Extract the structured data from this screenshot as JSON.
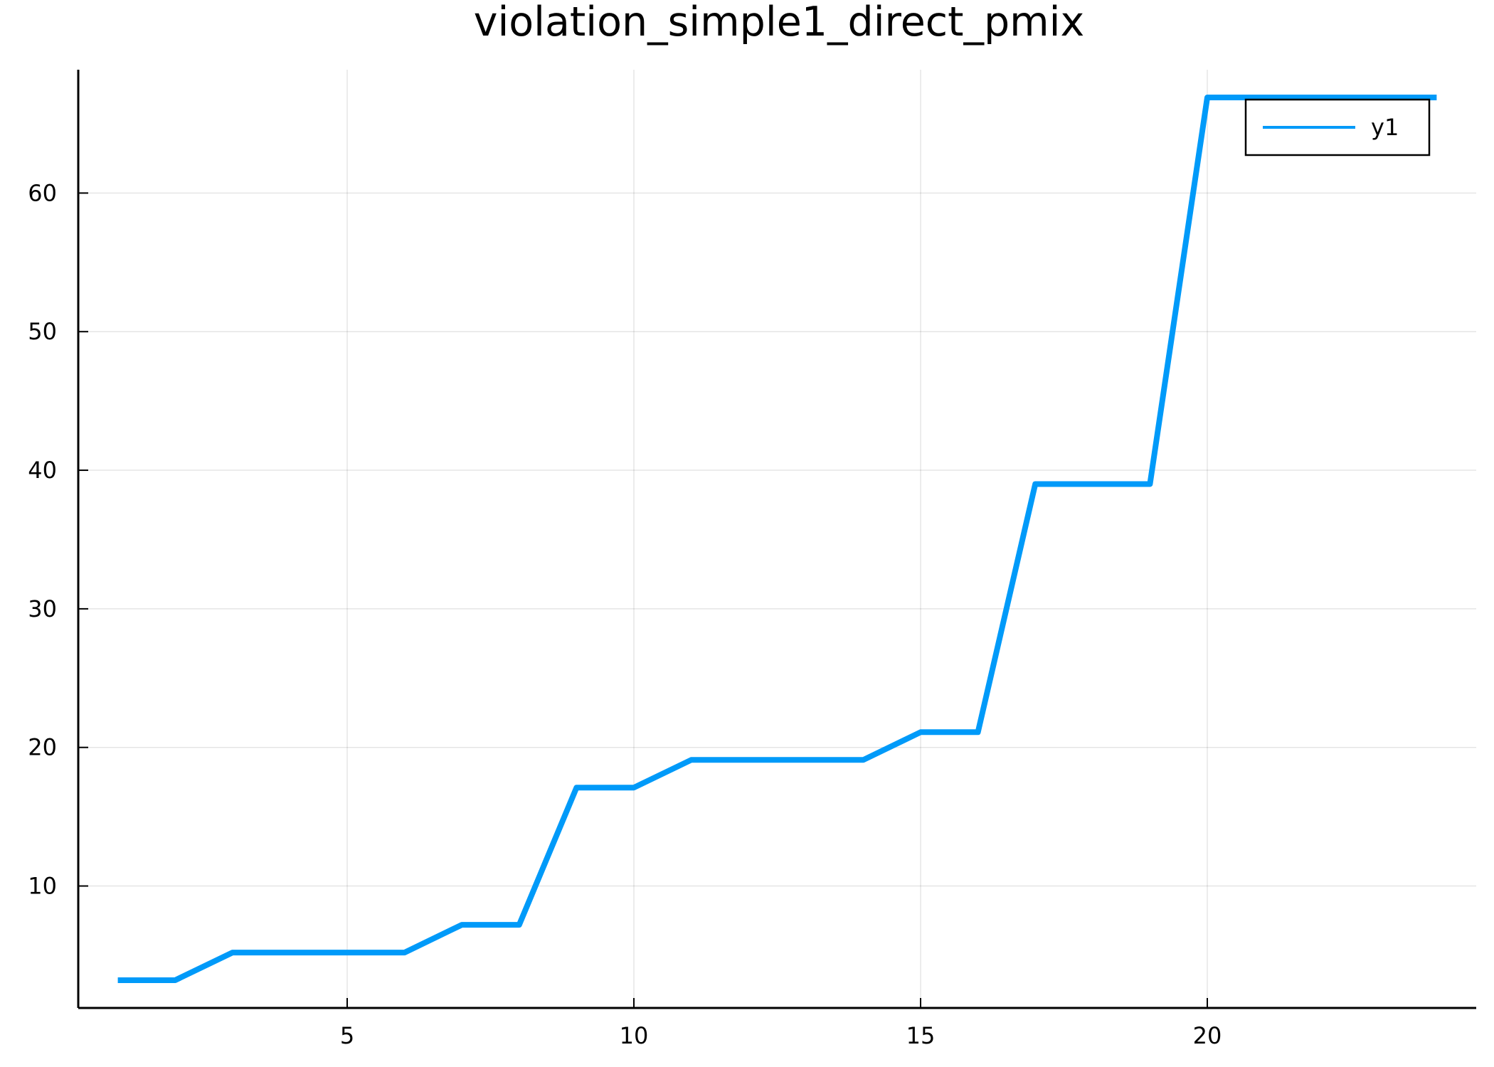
{
  "chart_data": {
    "type": "line",
    "title": "violation_simple1_direct_pmix",
    "xlabel": "",
    "ylabel": "",
    "xlim": [
      0.31,
      24.69
    ],
    "ylim": [
      1.2,
      68.9
    ],
    "xticks": [
      5,
      10,
      15,
      20
    ],
    "yticks": [
      10,
      20,
      30,
      40,
      50,
      60
    ],
    "grid": true,
    "legend_position": "top-right",
    "series": [
      {
        "name": "y1",
        "color": "#009af9",
        "x": [
          1,
          2,
          3,
          4,
          5,
          6,
          7,
          8,
          9,
          10,
          11,
          12,
          13,
          14,
          15,
          16,
          17,
          18,
          19,
          20,
          21,
          22,
          23,
          24
        ],
        "y": [
          3.2,
          3.2,
          5.2,
          5.2,
          5.2,
          5.2,
          7.2,
          7.2,
          17.1,
          17.1,
          19.1,
          19.1,
          19.1,
          19.1,
          21.1,
          21.1,
          39.0,
          39.0,
          39.0,
          66.9,
          66.9,
          66.9,
          66.9,
          66.9
        ]
      }
    ]
  }
}
